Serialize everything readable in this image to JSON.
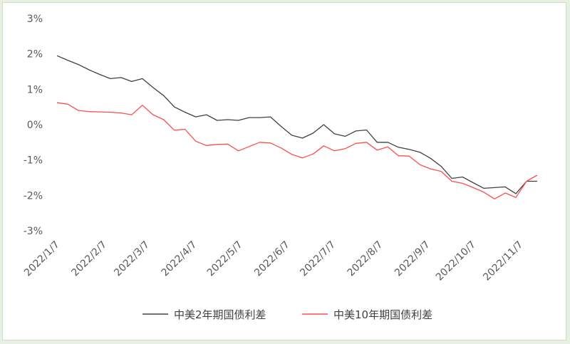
{
  "chart_data": {
    "type": "line",
    "title": "",
    "xlabel": "",
    "ylabel": "",
    "ylim": [
      -3,
      3
    ],
    "y_ticks": [
      "3%",
      "2%",
      "1%",
      "0%",
      "-1%",
      "-2%",
      "-3%"
    ],
    "x_ticks": [
      "2022/1/7",
      "2022/2/7",
      "2022/3/7",
      "2022/4/7",
      "2022/5/7",
      "2022/6/7",
      "2022/7/7",
      "2022/8/7",
      "2022/9/7",
      "2022/10/7",
      "2022/11/7"
    ],
    "grid": false,
    "legend_position": "bottom",
    "colors": {
      "series1": "#404040",
      "series2": "#ff4d4d"
    },
    "series": [
      {
        "name": "中美2年期国债利差",
        "x": [
          "2022-01-07",
          "2022-01-14",
          "2022-01-21",
          "2022-01-28",
          "2022-02-04",
          "2022-02-11",
          "2022-02-18",
          "2022-02-25",
          "2022-03-04",
          "2022-03-11",
          "2022-03-18",
          "2022-03-25",
          "2022-04-01",
          "2022-04-08",
          "2022-04-15",
          "2022-04-22",
          "2022-04-29",
          "2022-05-06",
          "2022-05-13",
          "2022-05-20",
          "2022-05-27",
          "2022-06-03",
          "2022-06-10",
          "2022-06-17",
          "2022-06-24",
          "2022-07-01",
          "2022-07-08",
          "2022-07-15",
          "2022-07-22",
          "2022-07-29",
          "2022-08-05",
          "2022-08-12",
          "2022-08-19",
          "2022-08-26",
          "2022-09-02",
          "2022-09-09",
          "2022-09-16",
          "2022-09-23",
          "2022-09-30",
          "2022-10-07",
          "2022-10-14",
          "2022-10-21",
          "2022-10-28",
          "2022-11-04",
          "2022-11-11",
          "2022-11-18"
        ],
        "values": [
          1.95,
          1.82,
          1.7,
          1.55,
          1.42,
          1.3,
          1.33,
          1.22,
          1.3,
          1.05,
          0.82,
          0.5,
          0.35,
          0.22,
          0.28,
          0.12,
          0.14,
          0.12,
          0.2,
          0.2,
          0.22,
          -0.05,
          -0.3,
          -0.38,
          -0.24,
          0.0,
          -0.26,
          -0.33,
          -0.18,
          -0.15,
          -0.5,
          -0.5,
          -0.64,
          -0.7,
          -0.78,
          -0.95,
          -1.18,
          -1.52,
          -1.48,
          -1.64,
          -1.8,
          -1.78,
          -1.76,
          -1.95,
          -1.6,
          -1.6
        ]
      },
      {
        "name": "中美10年期国债利差",
        "x": [
          "2022-01-07",
          "2022-01-14",
          "2022-01-21",
          "2022-01-28",
          "2022-02-04",
          "2022-02-11",
          "2022-02-18",
          "2022-02-25",
          "2022-03-04",
          "2022-03-11",
          "2022-03-18",
          "2022-03-25",
          "2022-04-01",
          "2022-04-08",
          "2022-04-15",
          "2022-04-22",
          "2022-04-29",
          "2022-05-06",
          "2022-05-13",
          "2022-05-20",
          "2022-05-27",
          "2022-06-03",
          "2022-06-10",
          "2022-06-17",
          "2022-06-24",
          "2022-07-01",
          "2022-07-08",
          "2022-07-15",
          "2022-07-22",
          "2022-07-29",
          "2022-08-05",
          "2022-08-12",
          "2022-08-19",
          "2022-08-26",
          "2022-09-02",
          "2022-09-09",
          "2022-09-16",
          "2022-09-23",
          "2022-09-30",
          "2022-10-07",
          "2022-10-14",
          "2022-10-21",
          "2022-10-28",
          "2022-11-04",
          "2022-11-11",
          "2022-11-18"
        ],
        "values": [
          0.62,
          0.58,
          0.4,
          0.37,
          0.36,
          0.35,
          0.33,
          0.28,
          0.55,
          0.28,
          0.14,
          -0.16,
          -0.13,
          -0.47,
          -0.59,
          -0.56,
          -0.55,
          -0.74,
          -0.62,
          -0.5,
          -0.52,
          -0.66,
          -0.84,
          -0.94,
          -0.83,
          -0.6,
          -0.74,
          -0.68,
          -0.53,
          -0.5,
          -0.72,
          -0.63,
          -0.88,
          -0.89,
          -1.13,
          -1.25,
          -1.32,
          -1.6,
          -1.66,
          -1.78,
          -1.91,
          -2.1,
          -1.93,
          -2.06,
          -1.6,
          -1.43
        ]
      }
    ]
  }
}
